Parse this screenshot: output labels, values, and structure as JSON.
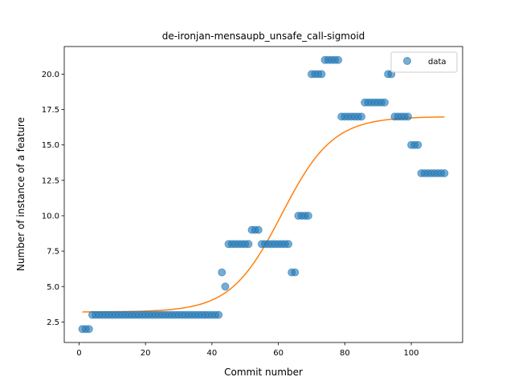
{
  "chart_data": {
    "type": "scatter",
    "title": "de-ironjan-mensaupb_unsafe_call-sigmoid",
    "xlabel": "Commit number",
    "ylabel": "Number of instance of a feature",
    "xlim": [
      -4.45,
      115.45
    ],
    "ylim": [
      1.05,
      21.95
    ],
    "x_ticks": [
      0,
      20,
      40,
      60,
      80,
      100
    ],
    "y_ticks": [
      2.5,
      5.0,
      7.5,
      10.0,
      12.5,
      15.0,
      17.5,
      20.0
    ],
    "y_tick_labels": [
      "2.5",
      "5.0",
      "7.5",
      "10.0",
      "12.5",
      "15.0",
      "17.5",
      "20.0"
    ],
    "grid": false,
    "legend_position": "upper-right",
    "colors": {
      "data": "#1f77b4",
      "fit": "#ff7f0e"
    },
    "series": [
      {
        "name": "data",
        "kind": "scatter",
        "points": [
          [
            1,
            2
          ],
          [
            2,
            2
          ],
          [
            3,
            2
          ],
          [
            4,
            3
          ],
          [
            5,
            3
          ],
          [
            6,
            3
          ],
          [
            7,
            3
          ],
          [
            8,
            3
          ],
          [
            9,
            3
          ],
          [
            10,
            3
          ],
          [
            11,
            3
          ],
          [
            12,
            3
          ],
          [
            13,
            3
          ],
          [
            14,
            3
          ],
          [
            15,
            3
          ],
          [
            16,
            3
          ],
          [
            17,
            3
          ],
          [
            18,
            3
          ],
          [
            19,
            3
          ],
          [
            20,
            3
          ],
          [
            21,
            3
          ],
          [
            22,
            3
          ],
          [
            23,
            3
          ],
          [
            24,
            3
          ],
          [
            25,
            3
          ],
          [
            26,
            3
          ],
          [
            27,
            3
          ],
          [
            28,
            3
          ],
          [
            29,
            3
          ],
          [
            30,
            3
          ],
          [
            31,
            3
          ],
          [
            32,
            3
          ],
          [
            33,
            3
          ],
          [
            34,
            3
          ],
          [
            35,
            3
          ],
          [
            36,
            3
          ],
          [
            37,
            3
          ],
          [
            38,
            3
          ],
          [
            39,
            3
          ],
          [
            40,
            3
          ],
          [
            41,
            3
          ],
          [
            42,
            3
          ],
          [
            43,
            6
          ],
          [
            44,
            5
          ],
          [
            45,
            8
          ],
          [
            46,
            8
          ],
          [
            47,
            8
          ],
          [
            48,
            8
          ],
          [
            49,
            8
          ],
          [
            50,
            8
          ],
          [
            51,
            8
          ],
          [
            52,
            9
          ],
          [
            53,
            9
          ],
          [
            54,
            9
          ],
          [
            55,
            8
          ],
          [
            56,
            8
          ],
          [
            57,
            8
          ],
          [
            58,
            8
          ],
          [
            59,
            8
          ],
          [
            60,
            8
          ],
          [
            61,
            8
          ],
          [
            62,
            8
          ],
          [
            63,
            8
          ],
          [
            64,
            6
          ],
          [
            65,
            6
          ],
          [
            66,
            10
          ],
          [
            67,
            10
          ],
          [
            68,
            10
          ],
          [
            69,
            10
          ],
          [
            70,
            20
          ],
          [
            71,
            20
          ],
          [
            72,
            20
          ],
          [
            73,
            20
          ],
          [
            74,
            21
          ],
          [
            75,
            21
          ],
          [
            76,
            21
          ],
          [
            77,
            21
          ],
          [
            78,
            21
          ],
          [
            79,
            17
          ],
          [
            80,
            17
          ],
          [
            81,
            17
          ],
          [
            82,
            17
          ],
          [
            83,
            17
          ],
          [
            84,
            17
          ],
          [
            85,
            17
          ],
          [
            86,
            18
          ],
          [
            87,
            18
          ],
          [
            88,
            18
          ],
          [
            89,
            18
          ],
          [
            90,
            18
          ],
          [
            91,
            18
          ],
          [
            92,
            18
          ],
          [
            93,
            20
          ],
          [
            94,
            20
          ],
          [
            95,
            17
          ],
          [
            96,
            17
          ],
          [
            97,
            17
          ],
          [
            98,
            17
          ],
          [
            99,
            17
          ],
          [
            100,
            15
          ],
          [
            101,
            15
          ],
          [
            102,
            15
          ],
          [
            103,
            13
          ],
          [
            104,
            13
          ],
          [
            105,
            13
          ],
          [
            106,
            13
          ],
          [
            107,
            13
          ],
          [
            108,
            13
          ],
          [
            109,
            13
          ],
          [
            110,
            13
          ]
        ]
      },
      {
        "kind": "line",
        "fit": {
          "L": 13.8,
          "k": 0.13,
          "x0": 61,
          "b": 3.2,
          "x_start": 1,
          "x_end": 110
        }
      }
    ]
  }
}
